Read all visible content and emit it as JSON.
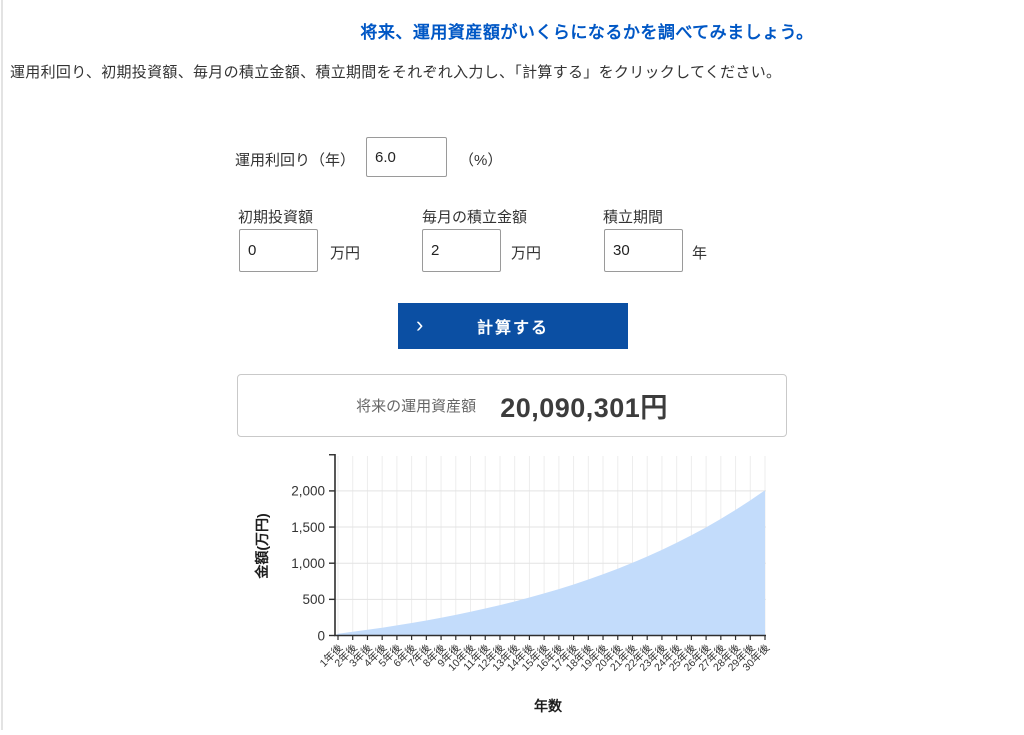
{
  "page": {
    "title": "将来、運用資産額がいくらになるかを調べてみましょう。",
    "description": "運用利回り、初期投資額、毎月の積立金額、積立期間をそれぞれ入力し、「計算する」をクリックしてください。"
  },
  "form": {
    "yield": {
      "label": "運用利回り（年）",
      "value": "6.0",
      "unit": "（%）"
    },
    "initial": {
      "label": "初期投資額",
      "value": "0",
      "unit": "万円"
    },
    "monthly": {
      "label": "毎月の積立金額",
      "value": "2",
      "unit": "万円"
    },
    "period": {
      "label": "積立期間",
      "value": "30",
      "unit": "年"
    },
    "submit_label": "計算する",
    "submit_icon": "›"
  },
  "result": {
    "label": "将来の運用資産額",
    "value": "20,090,301円"
  },
  "colors": {
    "title_blue": "#0057c5",
    "button_blue": "#0b4fa3",
    "area_fill": "#c3dcfb",
    "axis": "#2e2e2e",
    "grid": "#e9e9e9"
  },
  "chart_data": {
    "type": "area",
    "title": "",
    "xlabel": "年数",
    "ylabel": "金額(万円)",
    "x_labels": [
      "1年後",
      "2年後",
      "3年後",
      "4年後",
      "5年後",
      "6年後",
      "7年後",
      "8年後",
      "9年後",
      "10年後",
      "11年後",
      "12年後",
      "13年後",
      "14年後",
      "15年後",
      "16年後",
      "17年後",
      "18年後",
      "19年後",
      "20年後",
      "21年後",
      "22年後",
      "23年後",
      "24年後",
      "25年後",
      "26年後",
      "27年後",
      "28年後",
      "29年後",
      "30年後"
    ],
    "values": [
      25,
      51,
      79,
      108,
      140,
      173,
      208,
      246,
      285,
      328,
      373,
      420,
      471,
      525,
      582,
      642,
      706,
      775,
      847,
      924,
      1006,
      1093,
      1185,
      1282,
      1386,
      1496,
      1613,
      1737,
      1869,
      2009
    ],
    "ytick_values": [
      0,
      500,
      1000,
      1500,
      2000
    ],
    "ytick_labels": [
      "0",
      "500",
      "1,000",
      "1,500",
      "2,000"
    ],
    "ylim": [
      0,
      2500
    ],
    "grid": true,
    "legend": false,
    "fill_color": "#c3dcfb"
  }
}
